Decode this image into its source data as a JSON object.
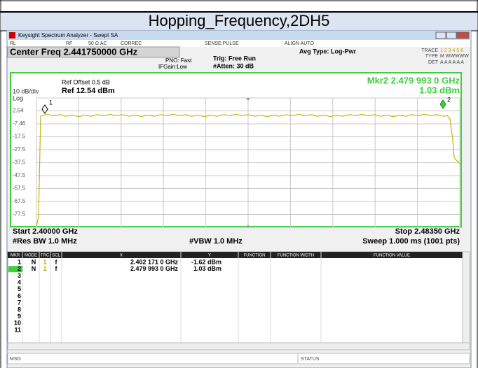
{
  "document_title": "Hopping_Frequency,2DH5",
  "window_title": "Keysight Spectrum Analyzer - Swept SA",
  "status_bar": [
    "RL",
    "RF",
    "50 Ω  AC",
    "CORREC",
    "SENSE:PULSE",
    "ALIGN AUTO"
  ],
  "center_freq": "Center Freq 2.441750000 GHz",
  "settings": {
    "pno": "PNO: Fast",
    "ifgain": "IFGain:Low",
    "trig": "Trig: Free Run",
    "atten": "#Atten: 30 dB",
    "avg_type": "Avg Type: Log-Pwr"
  },
  "trace_panel": {
    "trace": "TRACE",
    "trace_nums": "1 2 3 4 5 6",
    "type": "TYPE",
    "type_val": "M WWWWW",
    "det": "DET",
    "det_val": "A A A A A A"
  },
  "plot": {
    "ref_offset": "Ref Offset 0.5 dB",
    "scale": "10 dB/div",
    "ref_level": "Ref 12.54 dBm",
    "log": "Log",
    "marker_freq": "Mkr2 2.479 993 0 GHz",
    "marker_level": "1.03 dBm",
    "y_labels": [
      "2.54",
      "-7.46",
      "-17.5",
      "-27.5",
      "-37.5",
      "-47.5",
      "-57.5",
      "-67.5",
      "-77.5"
    ],
    "marker1": "1",
    "marker2": "2",
    "start": "Start 2.40000 GHz",
    "stop": "Stop 2.48350 GHz",
    "rbw": "#Res BW 1.0 MHz",
    "vbw": "#VBW 1.0 MHz",
    "sweep": "Sweep  1.000 ms (1001 pts)"
  },
  "marker_table": {
    "columns": [
      "MKR",
      "MODE",
      "TRC",
      "SCL",
      "X",
      "Y",
      "FUNCTION",
      "FUNCTION WIDTH",
      "FUNCTION VALUE"
    ],
    "rows": [
      [
        "1",
        "N",
        "1",
        "f",
        "2.402 171 0 GHz",
        "-1.62 dBm"
      ],
      [
        "2",
        "N",
        "1",
        "f",
        "2.479 993 0 GHz",
        "1.03 dBm"
      ],
      [
        "3"
      ],
      [
        "4"
      ],
      [
        "5"
      ],
      [
        "6"
      ],
      [
        "7"
      ],
      [
        "8"
      ],
      [
        "9"
      ],
      [
        "10"
      ],
      [
        "11"
      ]
    ]
  },
  "footer": {
    "msg": "MSG",
    "status": "STATUS"
  }
}
